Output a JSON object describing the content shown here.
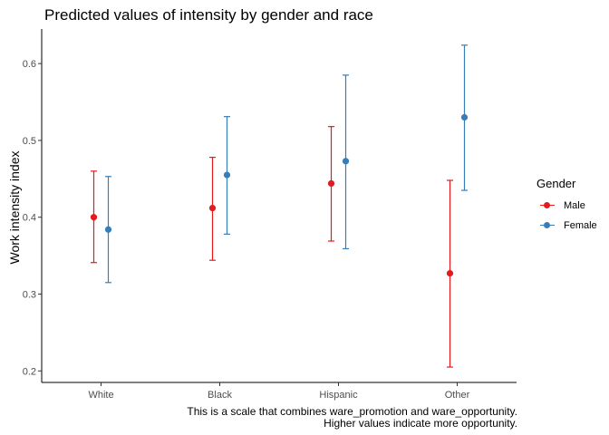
{
  "chart_data": {
    "type": "scatter",
    "subtype": "point-range with error bars",
    "title": "Predicted values of intensity by gender and race",
    "xlabel": "",
    "ylabel": "Work intensity index",
    "categories": [
      "White",
      "Black",
      "Hispanic",
      "Other"
    ],
    "ylim": [
      0.185,
      0.645
    ],
    "yticks": [
      0.2,
      0.3,
      0.4,
      0.5,
      0.6
    ],
    "ytick_labels": [
      "0.2",
      "0.3",
      "0.4",
      "0.5",
      "0.6"
    ],
    "grid": false,
    "legend": {
      "title": "Gender",
      "position": "right"
    },
    "series": [
      {
        "name": "Male",
        "color": "#E41A1C",
        "values": [
          0.4,
          0.412,
          0.444,
          0.327
        ],
        "lower": [
          0.341,
          0.344,
          0.369,
          0.205
        ],
        "upper": [
          0.46,
          0.478,
          0.518,
          0.448
        ]
      },
      {
        "name": "Female",
        "color": "#377EB8",
        "values": [
          0.384,
          0.455,
          0.473,
          0.53
        ],
        "lower": [
          0.315,
          0.378,
          0.359,
          0.435
        ],
        "upper": [
          0.453,
          0.531,
          0.585,
          0.624
        ]
      }
    ],
    "caption": [
      "This is a scale that combines ware_promotion and ware_opportunity.",
      "Higher values indicate more opportunity."
    ]
  }
}
